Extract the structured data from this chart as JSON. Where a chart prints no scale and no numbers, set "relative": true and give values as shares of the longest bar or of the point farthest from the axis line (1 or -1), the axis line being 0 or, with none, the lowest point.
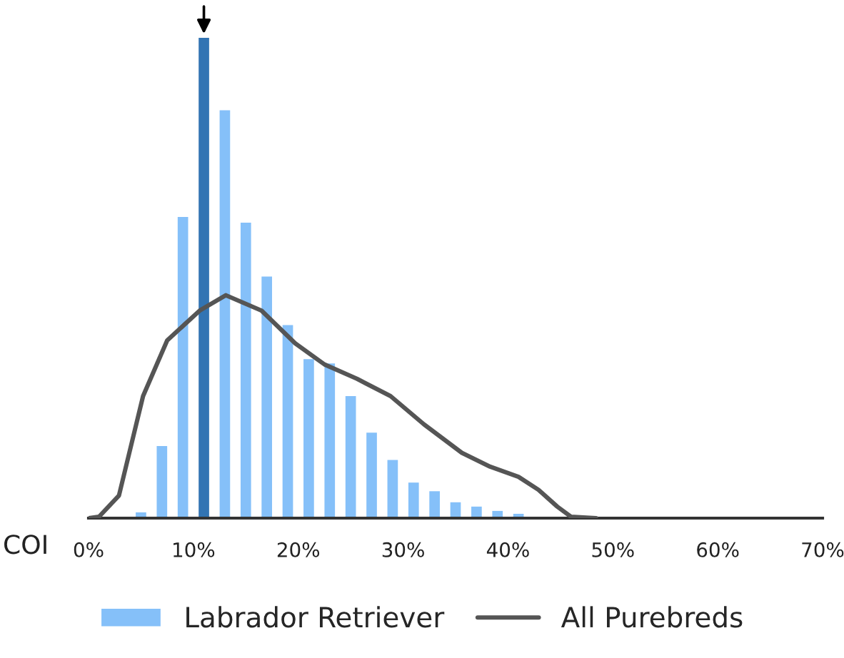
{
  "chart_data": {
    "type": "histogram",
    "relative": true,
    "xlabel": "COI",
    "xlim": [
      0,
      70
    ],
    "xticks": [
      {
        "value": 0,
        "label": "0%"
      },
      {
        "value": 10,
        "label": "10%"
      },
      {
        "value": 20,
        "label": "20%"
      },
      {
        "value": 30,
        "label": "30%"
      },
      {
        "value": 40,
        "label": "40%"
      },
      {
        "value": 50,
        "label": "50%"
      },
      {
        "value": 60,
        "label": "60%"
      },
      {
        "value": 70,
        "label": "70%"
      }
    ],
    "series": [
      {
        "type": "histogram",
        "name": "Labrador Retriever",
        "color": "#85c0f9",
        "bins": [
          4,
          6,
          8,
          10,
          12,
          14,
          16,
          18,
          20,
          22,
          24,
          26,
          28,
          30,
          32,
          34,
          36,
          38,
          40,
          42,
          44,
          46
        ],
        "values": [
          0.012,
          0.15,
          0.627,
          1,
          0.849,
          0.615,
          0.503,
          0.402,
          0.331,
          0.322,
          0.254,
          0.178,
          0.121,
          0.074,
          0.056,
          0.033,
          0.024,
          0.015,
          0.009,
          0.003,
          0.002
        ],
        "colors": [
          "#85c0f9",
          "#85c0f9",
          "#85c0f9",
          "#3274b3",
          "#85c0f9",
          "#85c0f9",
          "#85c0f9",
          "#85c0f9",
          "#85c0f9",
          "#85c0f9",
          "#85c0f9",
          "#85c0f9",
          "#85c0f9",
          "#85c0f9",
          "#85c0f9",
          "#85c0f9",
          "#85c0f9",
          "#85c0f9",
          "#85c0f9",
          "#85c0f9",
          "#85c0f9"
        ]
      },
      {
        "type": "line",
        "name": "All Purebreds",
        "color": "#555555",
        "x": [
          0,
          1,
          2.9,
          5.2,
          7.5,
          10.6,
          13.1,
          16.5,
          19.7,
          22.5,
          25.6,
          28.8,
          32,
          35.6,
          38.3,
          41,
          42.9,
          44.7,
          46,
          48.4
        ],
        "values": [
          0,
          0.003,
          0.047,
          0.254,
          0.37,
          0.432,
          0.464,
          0.432,
          0.364,
          0.32,
          0.29,
          0.254,
          0.195,
          0.136,
          0.107,
          0.086,
          0.059,
          0.024,
          0.003,
          0
        ]
      }
    ],
    "legend": "bottom",
    "grid": false
  }
}
